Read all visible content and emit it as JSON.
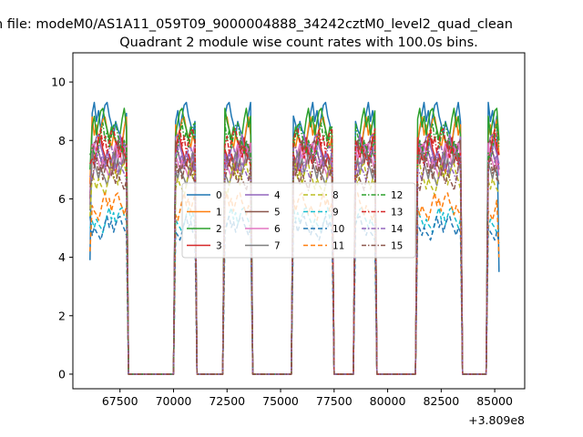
{
  "figure": {
    "suptitle": "n file: modeM0/AS1A11_059T09_9000004888_34242cztM0_level2_quad_clean",
    "title": "Quadrant 2 module wise count rates with 100.0s bins.",
    "x_offset_label": "+3.809e8"
  },
  "chart_data": {
    "type": "line",
    "title": "Quadrant 2 module wise count rates with 100.0s bins.",
    "xlabel": "",
    "ylabel": "",
    "x_offset": 380900000,
    "xlim": [
      65300,
      86400
    ],
    "ylim": [
      -0.5,
      11
    ],
    "x_ticks": [
      67500,
      70000,
      72500,
      75000,
      77500,
      80000,
      82500,
      85000
    ],
    "x_tick_labels": [
      "67500",
      "70000",
      "72500",
      "75000",
      "77500",
      "80000",
      "82500",
      "85000"
    ],
    "y_ticks": [
      0,
      2,
      4,
      6,
      8,
      10
    ],
    "y_tick_labels": [
      "0",
      "2",
      "4",
      "6",
      "8",
      "10"
    ],
    "grid": false,
    "legend_position": "center",
    "legend_columns": 4,
    "bin_seconds": 100,
    "segments": [
      [
        66100,
        67800
      ],
      [
        70100,
        71000
      ],
      [
        72400,
        73600
      ],
      [
        75600,
        77400
      ],
      [
        78500,
        79400
      ],
      [
        81400,
        83400
      ],
      [
        84700,
        85200
      ]
    ],
    "segment_template": [
      0.9,
      0.96,
      1.0,
      0.93,
      0.97,
      0.9,
      0.95,
      0.99,
      1.0,
      0.95,
      0.92,
      0.88,
      0.93,
      0.9,
      0.88,
      0.85
    ],
    "series": [
      {
        "name": "0",
        "level": 9.3,
        "color": "#1f77b4",
        "dash": "solid",
        "start": 3.9,
        "end": 3.5
      },
      {
        "name": "1",
        "level": 8.8,
        "color": "#ff7f0e",
        "dash": "solid",
        "start": 6.5,
        "end": 7.5
      },
      {
        "name": "2",
        "level": 9.1,
        "color": "#2ca02c",
        "dash": "solid",
        "start": 7.0,
        "end": 8.0
      },
      {
        "name": "3",
        "level": 8.1,
        "color": "#d62728",
        "dash": "solid",
        "start": 6.0,
        "end": 7.0
      },
      {
        "name": "4",
        "level": 8.2,
        "color": "#9467bd",
        "dash": "solid",
        "start": 6.2,
        "end": 7.2
      },
      {
        "name": "5",
        "level": 8.0,
        "color": "#8c564b",
        "dash": "solid",
        "start": 6.0,
        "end": 7.0
      },
      {
        "name": "6",
        "level": 7.9,
        "color": "#e377c2",
        "dash": "solid",
        "start": 5.8,
        "end": 6.8
      },
      {
        "name": "7",
        "level": 7.6,
        "color": "#7f7f7f",
        "dash": "solid",
        "start": 5.6,
        "end": 6.5
      },
      {
        "name": "8",
        "level": 7.2,
        "color": "#bcbd22",
        "dash": "dashed",
        "start": 5.4,
        "end": 6.2
      },
      {
        "name": "9",
        "level": 5.7,
        "color": "#17becf",
        "dash": "dashed",
        "start": 5.0,
        "end": 5.0
      },
      {
        "name": "10",
        "level": 5.4,
        "color": "#1f77b4",
        "dash": "dashed",
        "start": 5.4,
        "end": 4.5
      },
      {
        "name": "11",
        "level": 6.2,
        "color": "#ff7f0e",
        "dash": "dashed",
        "start": 4.2,
        "end": 4.0
      },
      {
        "name": "12",
        "level": 8.6,
        "color": "#2ca02c",
        "dash": "dashdot",
        "start": 7.5,
        "end": 7.8
      },
      {
        "name": "13",
        "level": 8.4,
        "color": "#d62728",
        "dash": "dashdot",
        "start": 7.2,
        "end": 7.5
      },
      {
        "name": "14",
        "level": 7.8,
        "color": "#9467bd",
        "dash": "dashdot",
        "start": 6.8,
        "end": 7.0
      },
      {
        "name": "15",
        "level": 7.4,
        "color": "#8c564b",
        "dash": "dashdot",
        "start": 6.4,
        "end": 6.6
      }
    ]
  }
}
